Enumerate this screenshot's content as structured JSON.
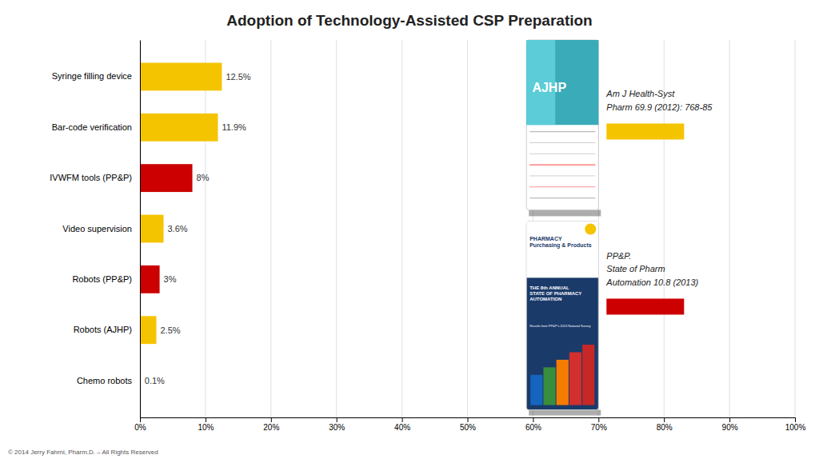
{
  "chart_data": {
    "type": "bar",
    "orientation": "horizontal",
    "title": "Adoption of Technology-Assisted CSP Preparation",
    "categories": [
      "Syringe filling device",
      "Bar-code verification",
      "IVWFM tools (PP&P)",
      "Video supervision",
      "Robots (PP&P)",
      "Robots (AJHP)",
      "Chemo robots"
    ],
    "values": [
      12.5,
      11.9,
      8.0,
      3.6,
      3.0,
      2.5,
      0.1
    ],
    "value_labels": [
      "12.5%",
      "11.9%",
      "8%",
      "3.6%",
      "3%",
      "2.5%",
      "0.1%"
    ],
    "data_labels": true,
    "colors": [
      "#F5C400",
      "#F5C400",
      "#CC0000",
      "#F5C400",
      "#CC0000",
      "#F5C400",
      "#F5C400"
    ],
    "xlim": [
      0,
      100
    ],
    "xticks": [
      {
        "value": 0,
        "label": "0%"
      },
      {
        "value": 10,
        "label": "10%"
      },
      {
        "value": 20,
        "label": "20%"
      },
      {
        "value": 30,
        "label": "30%"
      },
      {
        "value": 40,
        "label": "40%"
      },
      {
        "value": 50,
        "label": "50%"
      },
      {
        "value": 60,
        "label": "60%"
      },
      {
        "value": 70,
        "label": "70%"
      },
      {
        "value": 80,
        "label": "80%"
      },
      {
        "value": 90,
        "label": "90%"
      },
      {
        "value": 100,
        "label": "100%"
      }
    ],
    "grid": true,
    "annotations": [
      {
        "text": "AJHP"
      },
      {
        "text": "Am J Health-Syst\nPharm 69.9 (2012): 768-85",
        "color": "#F5C400"
      },
      {
        "text": "PHARMACY\nPurchasing & Products"
      },
      {
        "text": "THE 8th ANNUAL\nSTATE OF PHARMACY\nAUTOMATION"
      },
      {
        "text": "Results from PP&P's 2013 National Survey"
      },
      {
        "text": "PP&P.\nState of Pharm\nAutomation 10.8 (2013)",
        "color": "#CC0000"
      },
      {
        "text": "© 2014 Jerry Fahrni, Pharm.D. – All Rights Reserved"
      }
    ]
  }
}
